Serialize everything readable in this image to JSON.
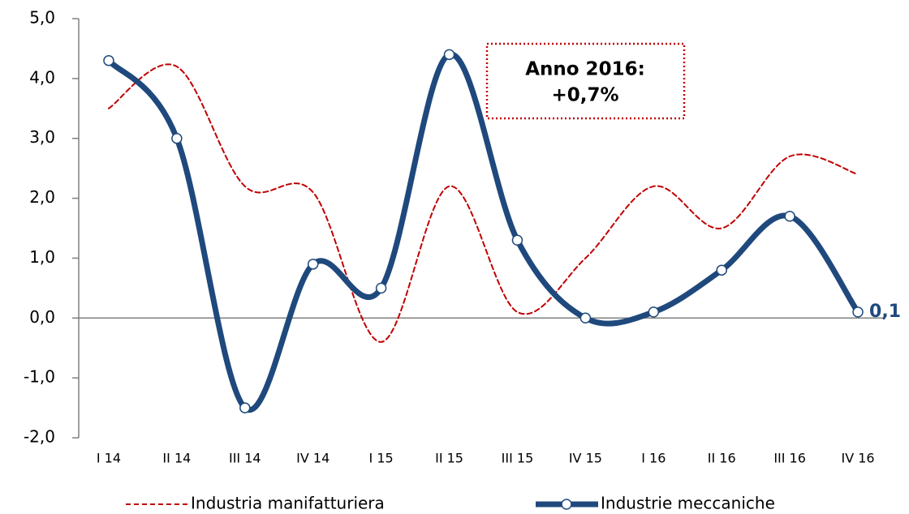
{
  "chart_data": {
    "type": "line",
    "categories": [
      "I 14",
      "II 14",
      "III 14",
      "IV 14",
      "I 15",
      "II 15",
      "III 15",
      "IV 15",
      "I 16",
      "II 16",
      "III 16",
      "IV 16"
    ],
    "series": [
      {
        "name": "Industria manifatturiera",
        "color": "#c00000",
        "style": "dashed",
        "values": [
          3.5,
          4.2,
          2.2,
          2.1,
          -0.4,
          2.2,
          0.1,
          1.0,
          2.2,
          1.5,
          2.7,
          2.4
        ]
      },
      {
        "name": "Industrie meccaniche",
        "color": "#1f497d",
        "style": "solid",
        "values": [
          4.3,
          3.0,
          -1.5,
          0.9,
          0.5,
          4.4,
          1.3,
          0.0,
          0.1,
          0.8,
          1.7,
          0.1
        ],
        "value_labels": [
          null,
          null,
          null,
          null,
          null,
          null,
          null,
          null,
          null,
          null,
          null,
          "0,1"
        ]
      }
    ],
    "ylim": [
      -2,
      5
    ],
    "yticks": [
      {
        "value": -2,
        "label": "-2,0"
      },
      {
        "value": -1,
        "label": "-1,0"
      },
      {
        "value": 0,
        "label": "0,0"
      },
      {
        "value": 1,
        "label": "1,0"
      },
      {
        "value": 2,
        "label": "2,0"
      },
      {
        "value": 3,
        "label": "3,0"
      },
      {
        "value": 4,
        "label": "4,0"
      },
      {
        "value": 5,
        "label": "5,0"
      }
    ],
    "annotation": [
      "Anno 2016:",
      "+0,7%"
    ],
    "legend": "bottom"
  }
}
